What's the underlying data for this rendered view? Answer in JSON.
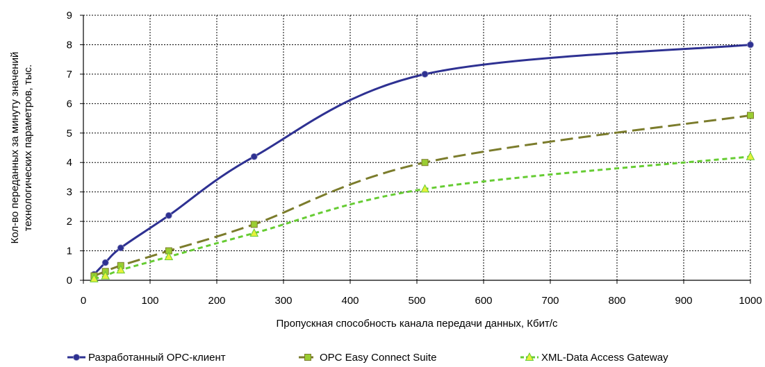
{
  "chart_data": {
    "type": "line",
    "xlabel": "Пропускная способность канала передачи данных, Кбит/с",
    "ylabel_lines": [
      "Кол-во переданных за минуту значений",
      "технологических параметров, тыс."
    ],
    "xlim": [
      0,
      1000
    ],
    "ylim": [
      0,
      9
    ],
    "x_ticks": [
      0,
      100,
      200,
      300,
      400,
      500,
      600,
      700,
      800,
      900,
      1000
    ],
    "y_ticks": [
      0,
      1,
      2,
      3,
      4,
      5,
      6,
      7,
      8,
      9
    ],
    "x_tick_labels": [
      "0",
      "100",
      "200",
      "300",
      "400",
      "500",
      "600",
      "700",
      "800",
      "900",
      "1000"
    ],
    "y_tick_labels": [
      "0",
      "1",
      "2",
      "3",
      "4",
      "5",
      "6",
      "7",
      "8",
      "9"
    ],
    "grid": true,
    "legend_position": "bottom",
    "series": [
      {
        "name": "Разработанный OPC-клиент",
        "color": "#2e3192",
        "marker": "circle",
        "dash": "solid",
        "x": [
          16,
          33,
          56,
          128,
          256,
          512,
          1000
        ],
        "y": [
          0.2,
          0.6,
          1.1,
          2.2,
          4.2,
          7.0,
          8.0
        ]
      },
      {
        "name": "OPC Easy Connect Suite",
        "color": "#7b7c2c",
        "marker_color": "#9acd32",
        "marker": "square",
        "dash": "long",
        "x": [
          16,
          33,
          56,
          128,
          256,
          512,
          1000
        ],
        "y": [
          0.15,
          0.3,
          0.5,
          1.0,
          1.9,
          4.0,
          5.6
        ]
      },
      {
        "name": "XML-Data Access Gateway",
        "color": "#66cc33",
        "marker_color": "#e6f03c",
        "marker": "triangle",
        "dash": "short",
        "x": [
          16,
          33,
          56,
          128,
          256,
          512,
          1000
        ],
        "y": [
          0.05,
          0.15,
          0.35,
          0.8,
          1.6,
          3.1,
          4.2
        ]
      }
    ]
  }
}
